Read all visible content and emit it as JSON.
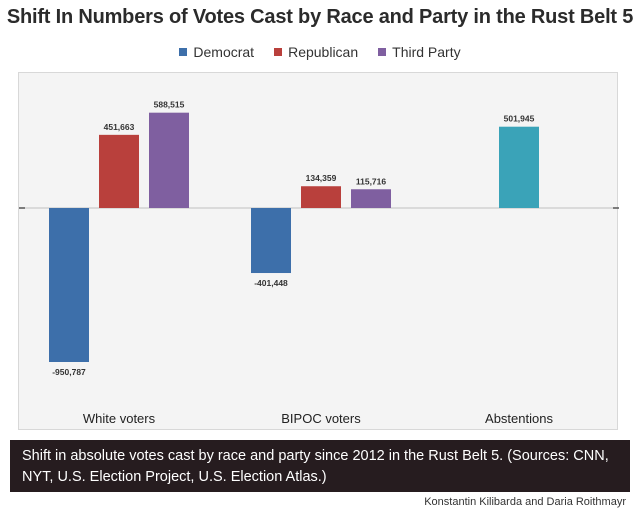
{
  "title": "Shift In Numbers of Votes Cast by Race and Party in the Rust Belt 5",
  "caption": "Shift in absolute votes cast by race and party since 2012 in the Rust Belt 5. (Sources: CNN, NYT, U.S. Election Project, U.S. Election Atlas.)",
  "credit": "Konstantin Kilibarda and Daria Roithmayr",
  "chart_data": {
    "type": "bar",
    "categories": [
      "White voters",
      "BIPOC voters",
      "Abstentions"
    ],
    "series": [
      {
        "name": "Democrat",
        "color": "#3d6faa",
        "values": [
          -950787,
          -401448,
          null
        ]
      },
      {
        "name": "Republican",
        "color": "#b9403c",
        "values": [
          451663,
          134359,
          null
        ]
      },
      {
        "name": "Third Party",
        "color": "#7f5fa0",
        "values": [
          588515,
          115716,
          null
        ]
      }
    ],
    "extra_bars": [
      {
        "category": "Abstentions",
        "color": "#3aa3b8",
        "value": 501945,
        "label": "501,945"
      }
    ],
    "data_labels": {
      "Democrat": [
        "-950,787",
        "-401,448"
      ],
      "Republican": [
        "451,663",
        "134,359"
      ],
      "Third Party": [
        "588,515",
        "115,716"
      ]
    },
    "ylim": [
      -1000000,
      650000
    ],
    "legend_position": "top-center",
    "grid": false
  }
}
